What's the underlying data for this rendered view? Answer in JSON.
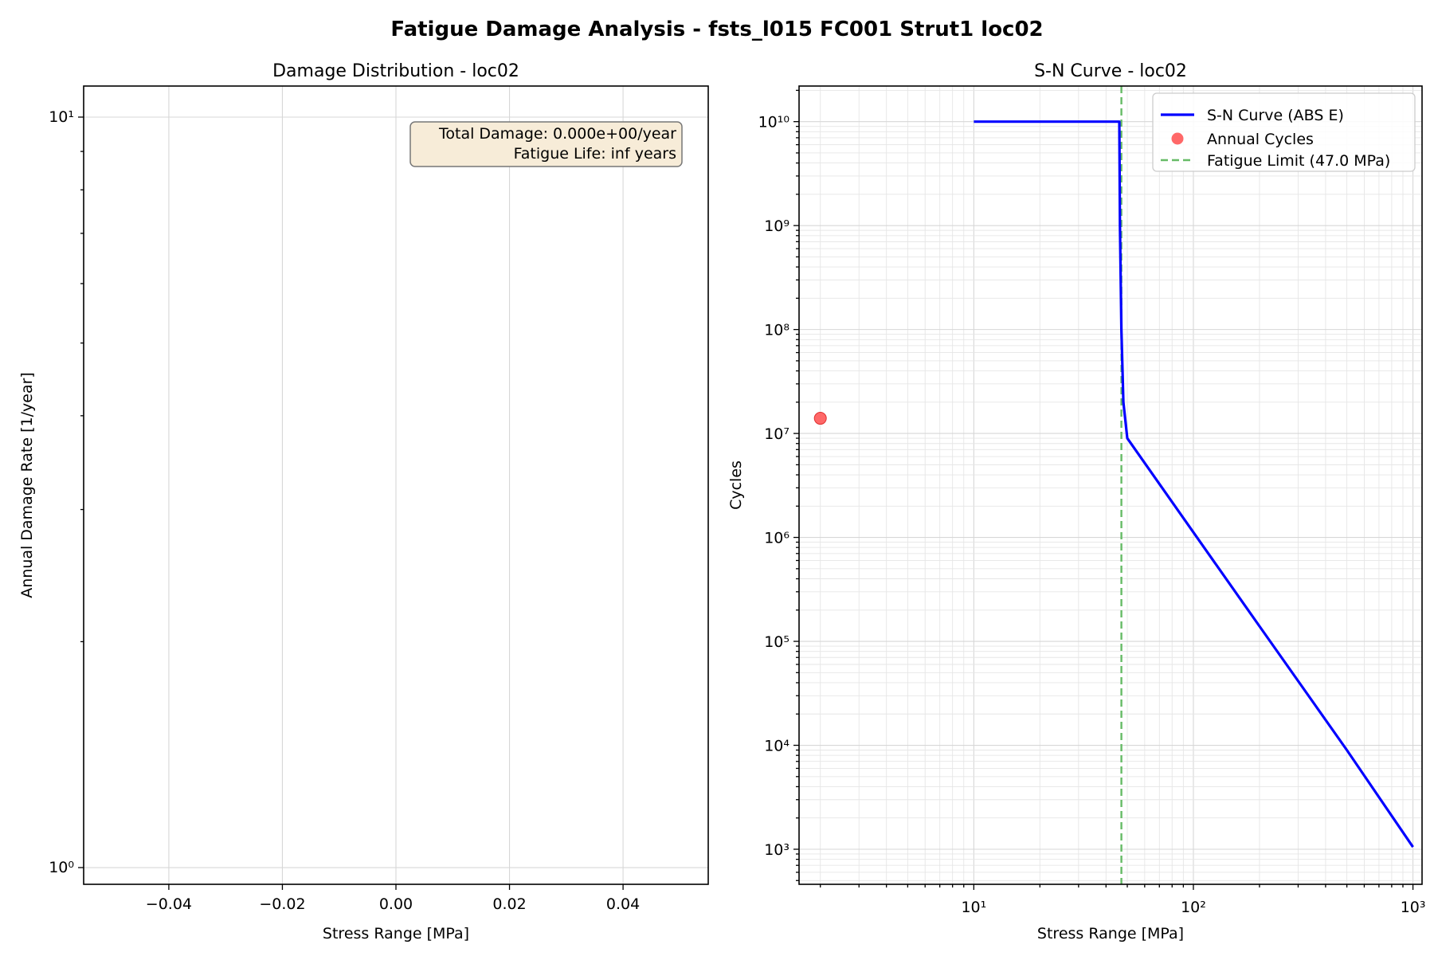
{
  "figure": {
    "title": "Fatigue Damage Analysis - fsts_l015 FC001 Strut1 loc02"
  },
  "chart_data": [
    {
      "type": "bar",
      "title": "Damage Distribution - loc02",
      "xlabel": "Stress Range [MPa]",
      "ylabel": "Annual Damage Rate [1/year]",
      "xlim": [
        -0.055,
        0.055
      ],
      "ylim": [
        0.95,
        11.0
      ],
      "yscale": "log",
      "xticks": [
        -0.04,
        -0.02,
        0.0,
        0.02,
        0.04
      ],
      "xtick_labels": [
        "−0.04",
        "−0.02",
        "0.00",
        "0.02",
        "0.04"
      ],
      "yticks": [
        1,
        10
      ],
      "grid": true,
      "values": [],
      "annotation": {
        "lines": [
          "Total Damage: 0.000e+00/year",
          "Fatigue Life: inf years"
        ],
        "box_color": "#f7ecd8"
      }
    },
    {
      "type": "line",
      "title": "S-N Curve - loc02",
      "xlabel": "Stress Range [MPa]",
      "ylabel": "Cycles",
      "xscale": "log",
      "yscale": "log",
      "xlim": [
        1.6,
        1100
      ],
      "ylim": [
        460,
        22000000000
      ],
      "xticks": [
        10,
        100,
        1000
      ],
      "yticks": [
        1000,
        10000,
        100000,
        1000000,
        10000000,
        100000000,
        1000000000,
        10000000000
      ],
      "grid": true,
      "legend_position": "top-right",
      "series": [
        {
          "name": "S-N Curve (ABS E)",
          "kind": "line",
          "color": "#0000ff",
          "x": [
            10,
            46,
            46.3,
            47,
            48,
            50,
            100,
            200,
            500,
            1000
          ],
          "y": [
            10000000000,
            10000000000,
            1000000000,
            100000000,
            20000000,
            9000000,
            1120000,
            140000,
            9000,
            1050
          ]
        },
        {
          "name": "Annual Cycles",
          "kind": "scatter",
          "color": "#ff4d4d",
          "x": [
            2.0
          ],
          "y": [
            14000000
          ]
        },
        {
          "name": "Fatigue Limit (47.0 MPa)",
          "kind": "vline",
          "color": "#66bb66",
          "x": 47.0
        }
      ]
    }
  ]
}
